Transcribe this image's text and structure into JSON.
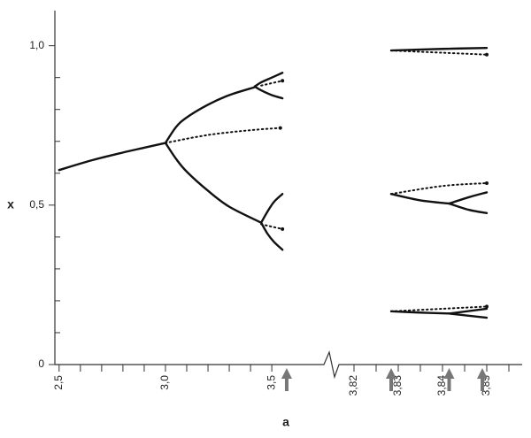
{
  "chart_data": [
    {
      "type": "line",
      "xlabel": "a",
      "ylabel": "x",
      "xlim": [
        2.48,
        3.72
      ],
      "ylim": [
        0,
        1.11
      ],
      "xticks": [
        {
          "value": 2.5,
          "label": "2,5"
        },
        {
          "value": 3.0,
          "label": "3,0"
        },
        {
          "value": 3.5,
          "label": "3,5"
        }
      ],
      "xminorticks": [
        2.6,
        2.7,
        2.8,
        2.9,
        3.1,
        3.2,
        3.3,
        3.4
      ],
      "yticks": [
        0,
        {
          "value": 0.5,
          "label": "0,5"
        },
        {
          "value": 1.0,
          "label": "1,0"
        }
      ],
      "yminorticks": [
        0.1,
        0.2,
        0.3,
        0.4,
        0.6,
        0.7,
        0.8,
        0.9
      ],
      "arrows_x": [
        3.57
      ],
      "arrow_color": "#777777",
      "series": [
        {
          "color": "#111111",
          "style": "solid",
          "x": [
            2.5,
            2.65,
            2.8,
            2.9,
            3.0
          ],
          "values": [
            0.61,
            0.64,
            0.665,
            0.68,
            0.695
          ]
        },
        {
          "color": "#111111",
          "style": "dotted",
          "x": [
            3.0,
            3.2,
            3.4,
            3.54
          ],
          "values": [
            0.695,
            0.72,
            0.735,
            0.742
          ]
        },
        {
          "color": "#111111",
          "style": "solid",
          "x": [
            3.0,
            3.05,
            3.1,
            3.2,
            3.3,
            3.42
          ],
          "values": [
            0.695,
            0.745,
            0.775,
            0.815,
            0.845,
            0.87
          ]
        },
        {
          "color": "#111111",
          "style": "solid",
          "x": [
            3.0,
            3.05,
            3.1,
            3.2,
            3.3,
            3.45
          ],
          "values": [
            0.695,
            0.645,
            0.605,
            0.545,
            0.495,
            0.445
          ]
        },
        {
          "color": "#111111",
          "style": "solid",
          "x": [
            3.42,
            3.45,
            3.5,
            3.55
          ],
          "values": [
            0.872,
            0.885,
            0.9,
            0.915
          ]
        },
        {
          "color": "#111111",
          "style": "solid",
          "x": [
            3.42,
            3.45,
            3.5,
            3.55
          ],
          "values": [
            0.872,
            0.86,
            0.845,
            0.835
          ]
        },
        {
          "color": "#111111",
          "style": "dotted",
          "x": [
            3.45,
            3.55
          ],
          "values": [
            0.875,
            0.89
          ]
        },
        {
          "color": "#111111",
          "style": "solid",
          "x": [
            3.45,
            3.48,
            3.51,
            3.55
          ],
          "values": [
            0.445,
            0.48,
            0.51,
            0.535
          ]
        },
        {
          "color": "#111111",
          "style": "solid",
          "x": [
            3.45,
            3.48,
            3.51,
            3.55
          ],
          "values": [
            0.445,
            0.41,
            0.385,
            0.36
          ]
        },
        {
          "color": "#111111",
          "style": "dotted",
          "x": [
            3.45,
            3.55
          ],
          "values": [
            0.44,
            0.425
          ]
        }
      ]
    },
    {
      "type": "line",
      "xlim": [
        3.817,
        3.858
      ],
      "ylim": [
        0,
        1.11
      ],
      "xticks": [
        {
          "value": 3.82,
          "label": "3,82"
        },
        {
          "value": 3.83,
          "label": "3,83"
        },
        {
          "value": 3.84,
          "label": "3,84"
        },
        {
          "value": 3.85,
          "label": "3,85"
        }
      ],
      "xminorticks": [
        3.825,
        3.835,
        3.845,
        3.855
      ],
      "arrows_x": [
        3.8284,
        3.8415,
        3.849
      ],
      "arrow_color": "#777777",
      "series": [
        {
          "color": "#111111",
          "style": "solid",
          "x": [
            3.8284,
            3.84,
            3.85
          ],
          "values": [
            0.985,
            0.99,
            0.993
          ]
        },
        {
          "color": "#111111",
          "style": "dotted",
          "x": [
            3.8284,
            3.84,
            3.85
          ],
          "values": [
            0.985,
            0.978,
            0.972
          ]
        },
        {
          "color": "#111111",
          "style": "solid",
          "x": [
            3.8284,
            3.835,
            3.8415
          ],
          "values": [
            0.535,
            0.515,
            0.505
          ]
        },
        {
          "color": "#111111",
          "style": "solid",
          "x": [
            3.8415,
            3.846,
            3.85
          ],
          "values": [
            0.505,
            0.525,
            0.54
          ]
        },
        {
          "color": "#111111",
          "style": "solid",
          "x": [
            3.8415,
            3.846,
            3.85
          ],
          "values": [
            0.505,
            0.485,
            0.475
          ]
        },
        {
          "color": "#111111",
          "style": "dotted",
          "x": [
            3.8284,
            3.84,
            3.85
          ],
          "values": [
            0.535,
            0.56,
            0.569
          ]
        },
        {
          "color": "#111111",
          "style": "solid",
          "x": [
            3.8284,
            3.835,
            3.8415
          ],
          "values": [
            0.167,
            0.163,
            0.16
          ]
        },
        {
          "color": "#111111",
          "style": "solid",
          "x": [
            3.8415,
            3.85
          ],
          "values": [
            0.16,
            0.175
          ]
        },
        {
          "color": "#111111",
          "style": "solid",
          "x": [
            3.8415,
            3.85
          ],
          "values": [
            0.16,
            0.147
          ]
        },
        {
          "color": "#111111",
          "style": "dotted",
          "x": [
            3.8284,
            3.84,
            3.85
          ],
          "values": [
            0.167,
            0.175,
            0.182
          ]
        }
      ]
    }
  ]
}
